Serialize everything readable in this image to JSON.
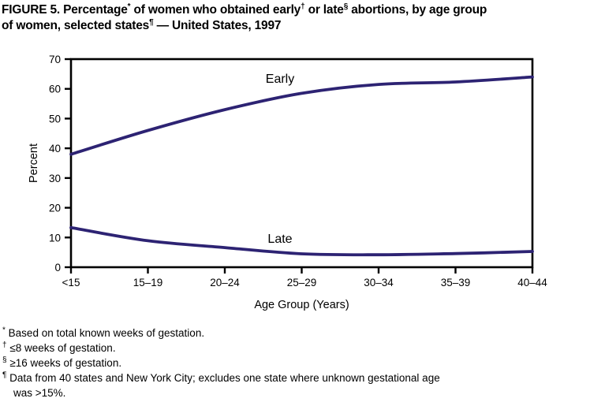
{
  "figure": {
    "title_lines": [
      [
        {
          "t": "FIGURE 5. Percentage"
        },
        {
          "t": "*",
          "sup": true
        },
        {
          "t": " of women who obtained early"
        },
        {
          "t": "†",
          "sup": true
        },
        {
          "t": " or late"
        },
        {
          "t": "§",
          "sup": true
        },
        {
          "t": " abortions, by age group"
        }
      ],
      [
        {
          "t": "of women, selected states"
        },
        {
          "t": "¶",
          "sup": true
        },
        {
          "t": " — United States, 1997"
        }
      ]
    ],
    "footnotes": [
      {
        "symbol": "*",
        "text": "Based on total known weeks of gestation."
      },
      {
        "symbol": "†",
        "text": "≤8 weeks of gestation."
      },
      {
        "symbol": "§",
        "text": "≥16 weeks of gestation."
      },
      {
        "symbol": "¶",
        "text": "Data from 40 states and New York City; excludes one state where unknown gestational age\nwas >15%."
      }
    ]
  },
  "chart_data": {
    "type": "line",
    "categories": [
      "<15",
      "15–19",
      "20–24",
      "25–29",
      "30–34",
      "35–39",
      "40–44"
    ],
    "series": [
      {
        "name": "Early",
        "values": [
          38,
          46,
          53,
          58.5,
          61.5,
          62.3,
          64
        ]
      },
      {
        "name": "Late",
        "values": [
          13.3,
          8.9,
          6.6,
          4.5,
          4.2,
          4.6,
          5.3
        ]
      }
    ],
    "title": "",
    "xlabel": "Age Group (Years)",
    "ylabel": "Percent",
    "ylim": [
      0,
      70
    ],
    "ytick_step": 10,
    "grid": false,
    "legend": "inline-labels",
    "line_color": "#2d2373",
    "axis_color": "#000000"
  }
}
